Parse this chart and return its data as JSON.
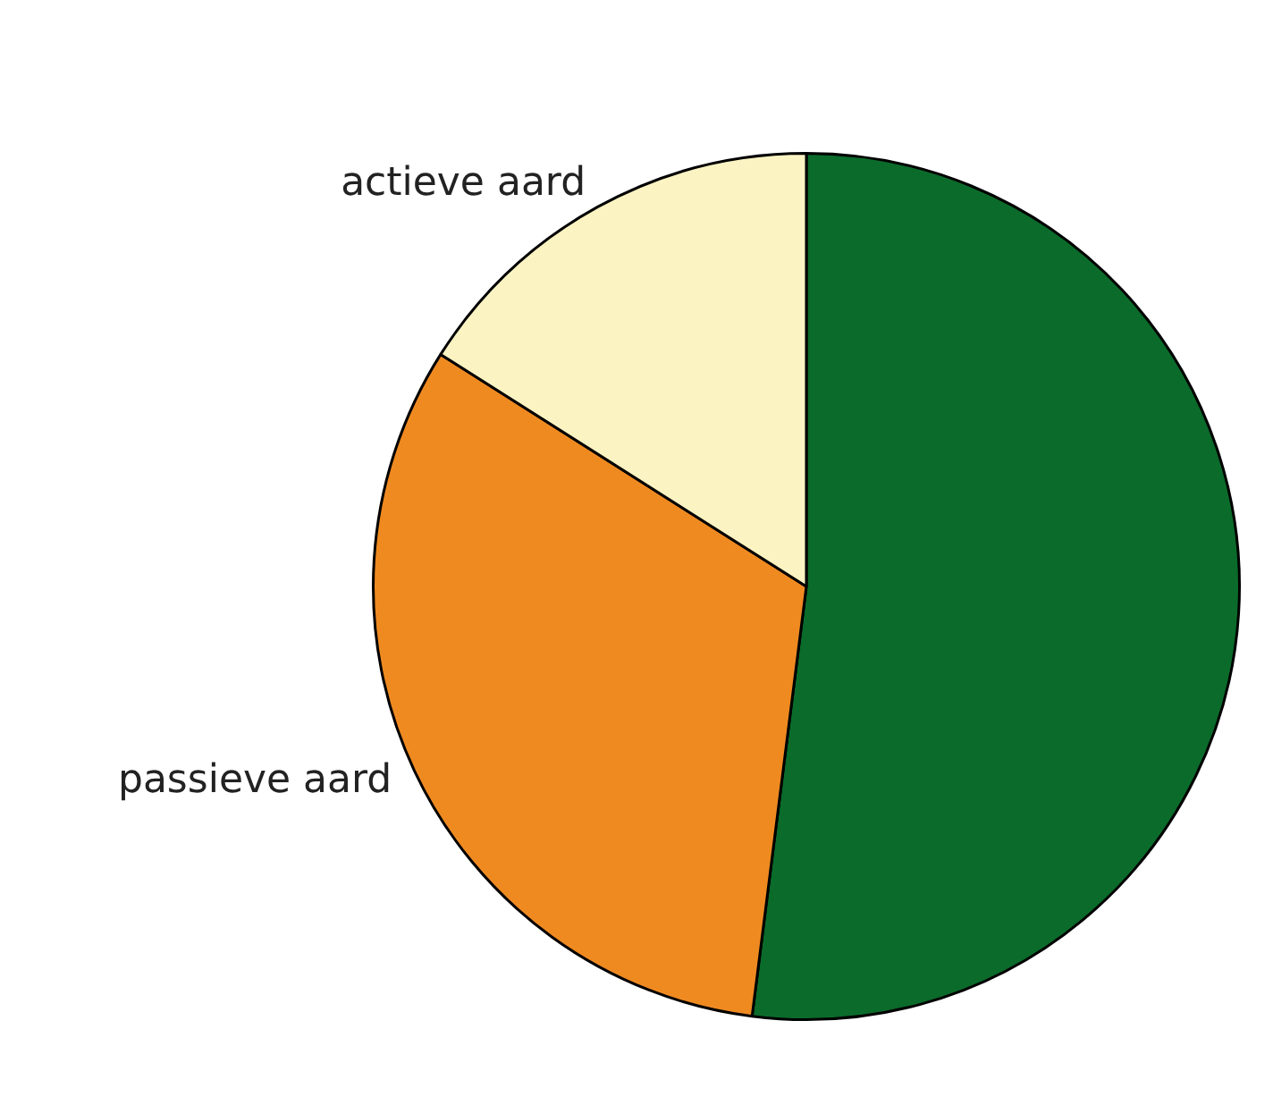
{
  "chart_data": {
    "type": "pie",
    "categories": [
      null,
      "passieve aard",
      "actieve aard"
    ],
    "values": [
      52,
      32,
      16
    ],
    "colors": [
      "#0b6b2b",
      "#ef8a21",
      "#fbf3c2"
    ],
    "legend": false
  }
}
